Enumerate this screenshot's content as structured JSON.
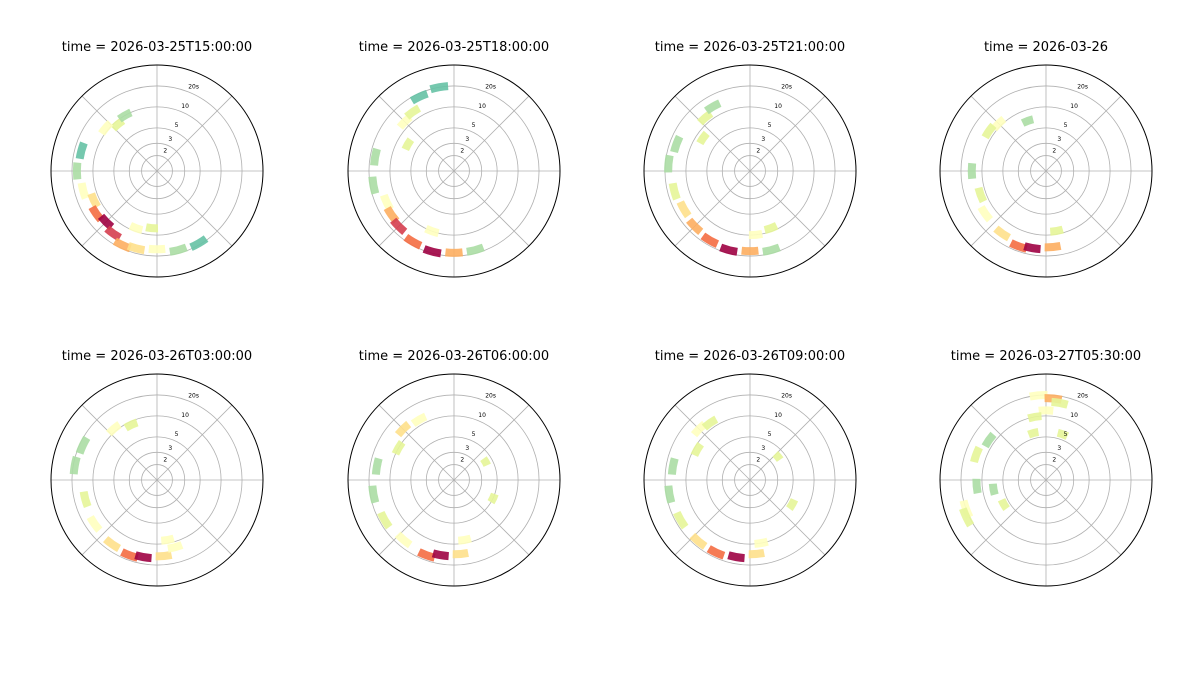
{
  "chart_data": [
    {
      "type": "polar",
      "title": "time = 2026-03-25T15:00:00",
      "rscale": "log",
      "rlim": [
        1.2,
        40
      ],
      "rticks": [
        2,
        3,
        5,
        10,
        {
          "value": 20,
          "label": "20s"
        }
      ],
      "grid": true,
      "cmap": "Spectral_r",
      "clim": [
        0,
        1
      ],
      "direction": [
        320,
        330,
        310,
        285,
        270,
        255,
        245,
        235,
        225,
        215,
        205,
        195,
        180,
        165,
        150,
        200,
        185
      ],
      "period": [
        9,
        10,
        11,
        16,
        17,
        15,
        12,
        14,
        13,
        15,
        18,
        17,
        16,
        18,
        19,
        9,
        8
      ],
      "energy": [
        0.4,
        0.3,
        0.5,
        0.2,
        0.3,
        0.5,
        0.6,
        0.8,
        1.0,
        0.9,
        0.7,
        0.6,
        0.5,
        0.3,
        0.2,
        0.5,
        0.4
      ]
    },
    {
      "type": "polar",
      "title": "time = 2026-03-25T18:00:00",
      "rscale": "log",
      "rlim": [
        1.2,
        40
      ],
      "rticks": [
        2,
        3,
        5,
        10,
        {
          "value": 20,
          "label": "20s"
        }
      ],
      "grid": true,
      "cmap": "Spectral_r",
      "clim": [
        0,
        1
      ],
      "direction": [
        315,
        325,
        335,
        350,
        300,
        280,
        260,
        245,
        235,
        225,
        210,
        195,
        180,
        165,
        200
      ],
      "period": [
        12,
        13,
        18,
        20,
        7,
        17,
        18,
        14,
        15,
        16,
        18,
        19,
        18,
        18,
        10
      ],
      "energy": [
        0.5,
        0.4,
        0.2,
        0.2,
        0.4,
        0.3,
        0.3,
        0.5,
        0.7,
        0.9,
        0.8,
        1.0,
        0.7,
        0.3,
        0.5
      ]
    },
    {
      "type": "polar",
      "title": "time = 2026-03-25T21:00:00",
      "rscale": "log",
      "rlim": [
        1.2,
        40
      ],
      "rticks": [
        2,
        3,
        5,
        10,
        {
          "value": 20,
          "label": "20s"
        }
      ],
      "grid": true,
      "cmap": "Spectral_r",
      "clim": [
        0,
        1
      ],
      "direction": [
        320,
        330,
        305,
        290,
        275,
        255,
        240,
        225,
        210,
        195,
        180,
        165,
        175,
        160
      ],
      "period": [
        12,
        14,
        8,
        16,
        18,
        16,
        15,
        16,
        17,
        18,
        17,
        18,
        10,
        9
      ],
      "energy": [
        0.4,
        0.3,
        0.4,
        0.3,
        0.3,
        0.4,
        0.6,
        0.7,
        0.8,
        1.0,
        0.7,
        0.3,
        0.5,
        0.4
      ]
    },
    {
      "type": "polar",
      "title": "time = 2026-03-26",
      "rscale": "log",
      "rlim": [
        1.2,
        40
      ],
      "rticks": [
        2,
        3,
        5,
        10,
        {
          "value": 20,
          "label": "20s"
        }
      ],
      "grid": true,
      "cmap": "Spectral_r",
      "clim": [
        0,
        1
      ],
      "direction": [
        315,
        305,
        340,
        270,
        250,
        235,
        215,
        200,
        190,
        175,
        170
      ],
      "period": [
        11,
        12,
        7,
        14,
        12,
        14,
        15,
        17,
        16,
        15,
        9
      ],
      "energy": [
        0.5,
        0.4,
        0.3,
        0.3,
        0.4,
        0.5,
        0.6,
        0.8,
        1.0,
        0.7,
        0.4
      ]
    },
    {
      "type": "polar",
      "title": "time = 2026-03-26T03:00:00",
      "rscale": "log",
      "rlim": [
        1.2,
        40
      ],
      "rticks": [
        2,
        3,
        5,
        10,
        {
          "value": 20,
          "label": "20s"
        }
      ],
      "grid": true,
      "cmap": "Spectral_r",
      "clim": [
        0,
        1
      ],
      "direction": [
        320,
        335,
        295,
        280,
        255,
        235,
        215,
        200,
        190,
        175,
        170,
        165
      ],
      "period": [
        11,
        9,
        18,
        19,
        14,
        15,
        16,
        17,
        16,
        15,
        9,
        12
      ],
      "energy": [
        0.5,
        0.4,
        0.3,
        0.3,
        0.4,
        0.5,
        0.6,
        0.8,
        1.0,
        0.6,
        0.5,
        0.5
      ]
    },
    {
      "type": "polar",
      "title": "time = 2026-03-26T06:00:00",
      "rscale": "log",
      "rlim": [
        1.2,
        40
      ],
      "rticks": [
        2,
        3,
        5,
        10,
        {
          "value": 20,
          "label": "20s"
        }
      ],
      "grid": true,
      "cmap": "Spectral_r",
      "clim": [
        0,
        1
      ],
      "direction": [
        315,
        330,
        300,
        280,
        260,
        240,
        220,
        200,
        190,
        175,
        170,
        60,
        115
      ],
      "period": [
        13,
        12,
        10,
        16,
        18,
        17,
        16,
        17,
        15,
        14,
        9,
        4,
        5
      ],
      "energy": [
        0.6,
        0.5,
        0.4,
        0.3,
        0.3,
        0.4,
        0.5,
        0.8,
        1.0,
        0.6,
        0.5,
        0.4,
        0.4
      ]
    },
    {
      "type": "polar",
      "title": "time = 2026-03-26T09:00:00",
      "rscale": "log",
      "rlim": [
        1.2,
        40
      ],
      "rticks": [
        2,
        3,
        5,
        10,
        {
          "value": 20,
          "label": "20s"
        }
      ],
      "grid": true,
      "cmap": "Spectral_r",
      "clim": [
        0,
        1
      ],
      "direction": [
        315,
        325,
        300,
        280,
        260,
        240,
        220,
        205,
        190,
        175,
        170,
        50,
        120
      ],
      "period": [
        13,
        12,
        9,
        16,
        18,
        17,
        17,
        17,
        16,
        14,
        10,
        4,
        6
      ],
      "energy": [
        0.5,
        0.4,
        0.4,
        0.3,
        0.3,
        0.4,
        0.6,
        0.8,
        1.0,
        0.6,
        0.5,
        0.4,
        0.4
      ]
    },
    {
      "type": "polar",
      "title": "time = 2026-03-27T05:30:00",
      "rscale": "log",
      "rlim": [
        1.2,
        40
      ],
      "rticks": [
        2,
        3,
        5,
        10,
        {
          "value": 20,
          "label": "20s"
        }
      ],
      "grid": true,
      "cmap": "Spectral_r",
      "clim": [
        0,
        1
      ],
      "direction": [
        355,
        5,
        10,
        0,
        350,
        20,
        345,
        305,
        290,
        265,
        250,
        245,
        260,
        240
      ],
      "period": [
        20,
        18,
        16,
        12,
        10,
        6,
        6,
        12,
        14,
        12,
        20,
        22,
        7,
        6
      ],
      "energy": [
        0.5,
        0.7,
        0.4,
        0.5,
        0.4,
        0.4,
        0.4,
        0.3,
        0.4,
        0.3,
        0.5,
        0.4,
        0.3,
        0.4
      ]
    }
  ]
}
